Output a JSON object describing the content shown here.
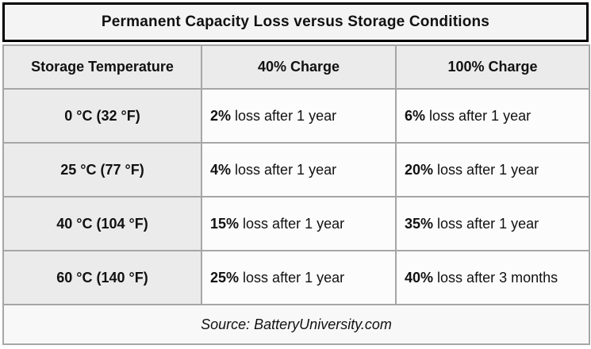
{
  "title": {
    "text": "Permanent Capacity Loss versus Storage Conditions"
  },
  "header": {
    "col1": "Storage Temperature",
    "col2": "40% Charge",
    "col3": "100% Charge"
  },
  "rows": [
    {
      "temp": "0 °C (32 °F)",
      "c40_pct": "2%",
      "c40_text": "loss after 1 year",
      "c100_pct": "6%",
      "c100_text": "loss after 1 year"
    },
    {
      "temp": "25 °C (77 °F)",
      "c40_pct": "4%",
      "c40_text": "loss after 1 year",
      "c100_pct": "20%",
      "c100_text": "loss after 1 year"
    },
    {
      "temp": "40 °C (104 °F)",
      "c40_pct": "15%",
      "c40_text": "loss after 1 year",
      "c100_pct": "35%",
      "c100_text": "loss after 1 year"
    },
    {
      "temp": "60 °C (140 °F)",
      "c40_pct": "25%",
      "c40_text": "loss after 1 year",
      "c100_pct": "40%",
      "c100_text": "loss after 3 months"
    }
  ],
  "footer": {
    "source": "Source: BatteryUniversity.com"
  },
  "colors": {
    "title_border": "#000000",
    "grid_border": "#a6a6a6",
    "header_bg": "#ebebeb",
    "title_bg": "#f4f4f4",
    "cell_bg": "#fcfcfc",
    "footer_bg": "#f8f8f8",
    "text": "#111111"
  },
  "chart_data": {
    "type": "table",
    "title": "Permanent Capacity Loss versus Storage Conditions",
    "columns": [
      "Storage Temperature",
      "40% Charge",
      "100% Charge"
    ],
    "rows": [
      [
        "0 °C (32 °F)",
        "2% loss after 1 year",
        "6% loss after 1 year"
      ],
      [
        "25 °C (77 °F)",
        "4% loss after 1 year",
        "20% loss after 1 year"
      ],
      [
        "40 °C (104 °F)",
        "15% loss after 1 year",
        "35% loss after 1 year"
      ],
      [
        "60 °C (140 °F)",
        "25% loss after 1 year",
        "40% loss after 3 months"
      ]
    ],
    "source": "Source: BatteryUniversity.com"
  }
}
